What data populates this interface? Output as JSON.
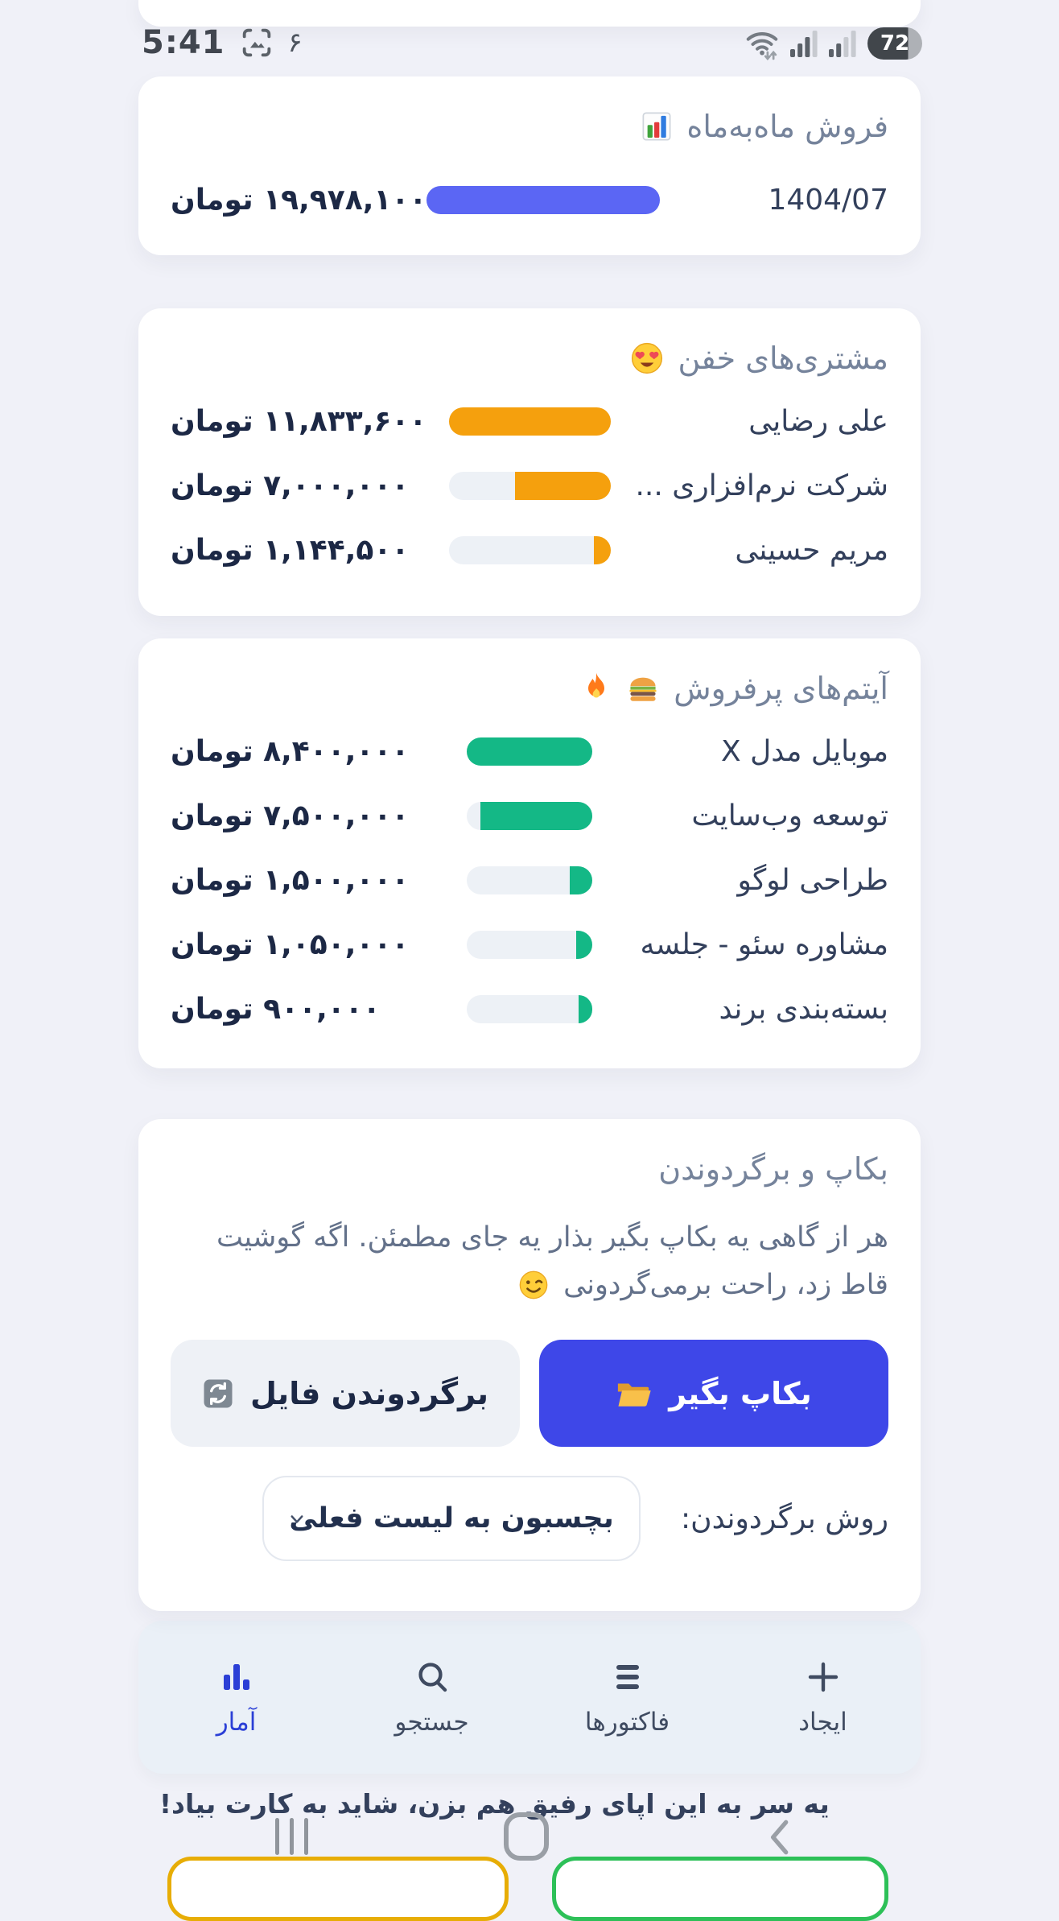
{
  "status_bar": {
    "time": "5:41",
    "notification_count": "۶",
    "battery_percent": "72"
  },
  "monthly_sales": {
    "title": "فروش ماه‌به‌ماه",
    "month": "1404/07",
    "amount": "۱۹,۹۷۸,۱۰۰ تومان",
    "percent": 100
  },
  "top_customers": {
    "title": "مشتری‌های خفن",
    "rows": [
      {
        "name": "علی رضایی",
        "amount": "۱۱,۸۳۳,۶۰۰ تومان",
        "percent": 100
      },
      {
        "name": "شرکت نرم‌افزاری ...",
        "amount": "۷,۰۰۰,۰۰۰ تومان",
        "percent": 59
      },
      {
        "name": "مریم حسینی",
        "amount": "۱,۱۴۴,۵۰۰ تومان",
        "percent": 10
      }
    ]
  },
  "top_items": {
    "title": "آیتم‌های پرفروش",
    "rows": [
      {
        "name": "موبایل مدل X",
        "amount": "۸,۴۰۰,۰۰۰ تومان",
        "percent": 100
      },
      {
        "name": "توسعه وب‌سایت",
        "amount": "۷,۵۰۰,۰۰۰ تومان",
        "percent": 89
      },
      {
        "name": "طراحی لوگو",
        "amount": "۱,۵۰۰,۰۰۰ تومان",
        "percent": 18
      },
      {
        "name": "مشاوره سئو - جلسه",
        "amount": "۱,۰۵۰,۰۰۰ تومان",
        "percent": 13
      },
      {
        "name": "بسته‌بندی برند",
        "amount": "۹۰۰,۰۰۰ تومان",
        "percent": 11
      }
    ]
  },
  "backup": {
    "title": "بکاپ و برگردوندن",
    "description": "هر از گاهی یه بکاپ بگیر بذار یه جای مطمئن. اگه گوشیت قاط زد، راحت برمی‌گردونی",
    "backup_button": "بکاپ بگیر",
    "restore_button": "برگردوندن فایل",
    "method_label": "روش برگردوندن:",
    "method_value": "بچسبون به لیست فعلی"
  },
  "bottom_nav": {
    "items": [
      {
        "label": "ایجاد",
        "icon": "plus-icon",
        "active": false
      },
      {
        "label": "فاکتورها",
        "icon": "invoices-icon",
        "active": false
      },
      {
        "label": "جستجو",
        "icon": "search-icon",
        "active": false
      },
      {
        "label": "آمار",
        "icon": "stats-icon",
        "active": true
      }
    ]
  },
  "footer": {
    "promo": "یه سر به این اپای رفیق هم بزن، شاید به کارت بیاد!"
  },
  "colors": {
    "page-bg": "#f0f1f8",
    "bar-blue": "#5b66f4",
    "bar-orange": "#f5a00d",
    "bar-green": "#14b886",
    "bar-track": "#edf1f6",
    "primary-button": "#3e47e8",
    "nav-active": "#2b3fd6",
    "outline-yellow": "#e7ad06",
    "outline-green": "#2dc058"
  }
}
